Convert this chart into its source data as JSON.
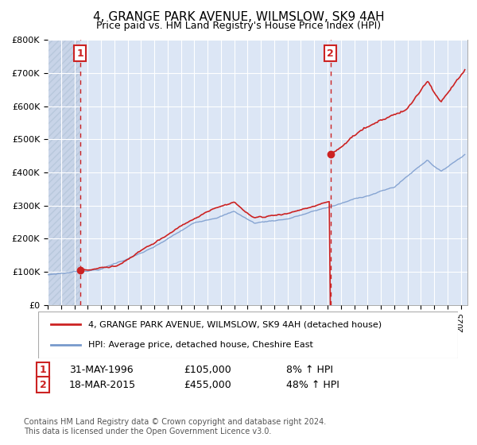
{
  "title": "4, GRANGE PARK AVENUE, WILMSLOW, SK9 4AH",
  "subtitle": "Price paid vs. HM Land Registry's House Price Index (HPI)",
  "ylabel_ticks": [
    "£0",
    "£100K",
    "£200K",
    "£300K",
    "£400K",
    "£500K",
    "£600K",
    "£700K",
    "£800K"
  ],
  "ytick_vals": [
    0,
    100000,
    200000,
    300000,
    400000,
    500000,
    600000,
    700000,
    800000
  ],
  "ylim": [
    0,
    800000
  ],
  "xlim_start": 1994.0,
  "xlim_end": 2025.5,
  "transaction1": {
    "date": 1996.42,
    "price": 105000,
    "label": "1",
    "info": "31-MAY-1996",
    "amount": "£105,000",
    "hpi": "8% ↑ HPI"
  },
  "transaction2": {
    "date": 2015.21,
    "price": 455000,
    "label": "2",
    "info": "18-MAR-2015",
    "amount": "£455,000",
    "hpi": "48% ↑ HPI"
  },
  "legend_line1": "4, GRANGE PARK AVENUE, WILMSLOW, SK9 4AH (detached house)",
  "legend_line2": "HPI: Average price, detached house, Cheshire East",
  "footnote": "Contains HM Land Registry data © Crown copyright and database right 2024.\nThis data is licensed under the Open Government Licence v3.0.",
  "plot_bg_color": "#dce6f5",
  "hatch_bg_color": "#c8d4e8",
  "grid_color": "#ffffff",
  "red_line_color": "#cc2222",
  "blue_line_color": "#7799cc",
  "marker_color": "#cc2222",
  "vline_color": "#cc2222",
  "box_edge_color": "#cc2222",
  "title_fontsize": 11,
  "subtitle_fontsize": 9,
  "tick_fontsize": 8,
  "legend_fontsize": 8,
  "table_fontsize": 9,
  "footnote_fontsize": 7
}
